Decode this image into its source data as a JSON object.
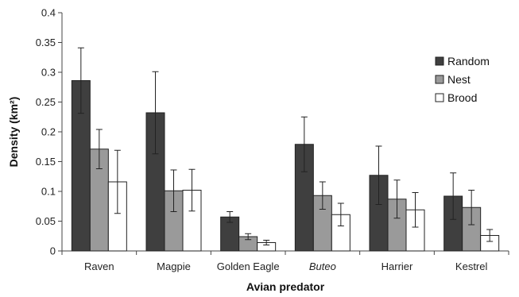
{
  "chart_data": {
    "type": "bar",
    "title": "",
    "xlabel": "Avian predator",
    "ylabel": "Density (km²)",
    "ylim": [
      0,
      0.4
    ],
    "yticks": [
      "0",
      "0.05",
      "0.1",
      "0.15",
      "0.2",
      "0.25",
      "0.3",
      "0.35",
      "0.4"
    ],
    "ytick_values": [
      0,
      0.05,
      0.1,
      0.15,
      0.2,
      0.25,
      0.3,
      0.35,
      0.4
    ],
    "categories": [
      "Raven",
      "Magpie",
      "Golden Eagle",
      "Buteo",
      "Harrier",
      "Kestrel"
    ],
    "italic_categories": [
      "Buteo"
    ],
    "grid": false,
    "legend_position": "top-right",
    "series": [
      {
        "name": "Random",
        "color": "#3f3f3f",
        "values": [
          0.286,
          0.232,
          0.057,
          0.179,
          0.127,
          0.092
        ],
        "errors": [
          0.055,
          0.069,
          0.009,
          0.046,
          0.049,
          0.039
        ]
      },
      {
        "name": "Nest",
        "color": "#9a9a9a",
        "values": [
          0.171,
          0.101,
          0.024,
          0.093,
          0.087,
          0.073
        ],
        "errors": [
          0.033,
          0.035,
          0.005,
          0.023,
          0.032,
          0.029
        ]
      },
      {
        "name": "Brood",
        "color": "#ffffff",
        "values": [
          0.116,
          0.102,
          0.014,
          0.061,
          0.069,
          0.026
        ],
        "errors": [
          0.053,
          0.035,
          0.004,
          0.019,
          0.029,
          0.01
        ]
      }
    ]
  }
}
